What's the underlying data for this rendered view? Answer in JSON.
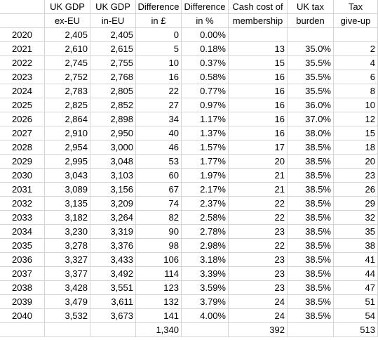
{
  "header": {
    "line1": [
      "",
      "UK GDP",
      "UK GDP",
      "Difference",
      "Difference",
      "Cash cost of",
      "UK tax",
      "Tax"
    ],
    "line2": [
      "",
      "ex-EU",
      "in-EU",
      "in £",
      "in %",
      "membership",
      "burden",
      "give-up"
    ]
  },
  "rows": [
    [
      "2020",
      "2,405",
      "2,405",
      "0",
      "0.00%",
      "",
      "",
      ""
    ],
    [
      "2021",
      "2,610",
      "2,615",
      "5",
      "0.18%",
      "13",
      "35.0%",
      "2"
    ],
    [
      "2022",
      "2,745",
      "2,755",
      "10",
      "0.37%",
      "15",
      "35.5%",
      "4"
    ],
    [
      "2023",
      "2,752",
      "2,768",
      "16",
      "0.58%",
      "16",
      "35.5%",
      "6"
    ],
    [
      "2024",
      "2,783",
      "2,805",
      "22",
      "0.77%",
      "16",
      "35.5%",
      "8"
    ],
    [
      "2025",
      "2,825",
      "2,852",
      "27",
      "0.97%",
      "16",
      "36.0%",
      "10"
    ],
    [
      "2026",
      "2,864",
      "2,898",
      "34",
      "1.17%",
      "16",
      "37.0%",
      "12"
    ],
    [
      "2027",
      "2,910",
      "2,950",
      "40",
      "1.37%",
      "16",
      "38.0%",
      "15"
    ],
    [
      "2028",
      "2,954",
      "3,000",
      "46",
      "1.57%",
      "17",
      "38.5%",
      "18"
    ],
    [
      "2029",
      "2,995",
      "3,048",
      "53",
      "1.77%",
      "20",
      "38.5%",
      "20"
    ],
    [
      "2030",
      "3,043",
      "3,103",
      "60",
      "1.97%",
      "21",
      "38.5%",
      "23"
    ],
    [
      "2031",
      "3,089",
      "3,156",
      "67",
      "2.17%",
      "21",
      "38.5%",
      "26"
    ],
    [
      "2032",
      "3,135",
      "3,209",
      "74",
      "2.37%",
      "22",
      "38.5%",
      "29"
    ],
    [
      "2033",
      "3,182",
      "3,264",
      "82",
      "2.58%",
      "22",
      "38.5%",
      "32"
    ],
    [
      "2034",
      "3,230",
      "3,319",
      "90",
      "2.78%",
      "23",
      "38.5%",
      "35"
    ],
    [
      "2035",
      "3,278",
      "3,376",
      "98",
      "2.98%",
      "22",
      "38.5%",
      "38"
    ],
    [
      "2036",
      "3,327",
      "3,433",
      "106",
      "3.18%",
      "23",
      "38.5%",
      "41"
    ],
    [
      "2037",
      "3,377",
      "3,492",
      "114",
      "3.39%",
      "23",
      "38.5%",
      "44"
    ],
    [
      "2038",
      "3,428",
      "3,551",
      "123",
      "3.59%",
      "23",
      "38.5%",
      "47"
    ],
    [
      "2039",
      "3,479",
      "3,611",
      "132",
      "3.79%",
      "24",
      "38.5%",
      "51"
    ],
    [
      "2040",
      "3,532",
      "3,673",
      "141",
      "4.00%",
      "24",
      "38.5%",
      "54"
    ]
  ],
  "totals": [
    "",
    "",
    "",
    "1,340",
    "",
    "392",
    "",
    "513"
  ]
}
